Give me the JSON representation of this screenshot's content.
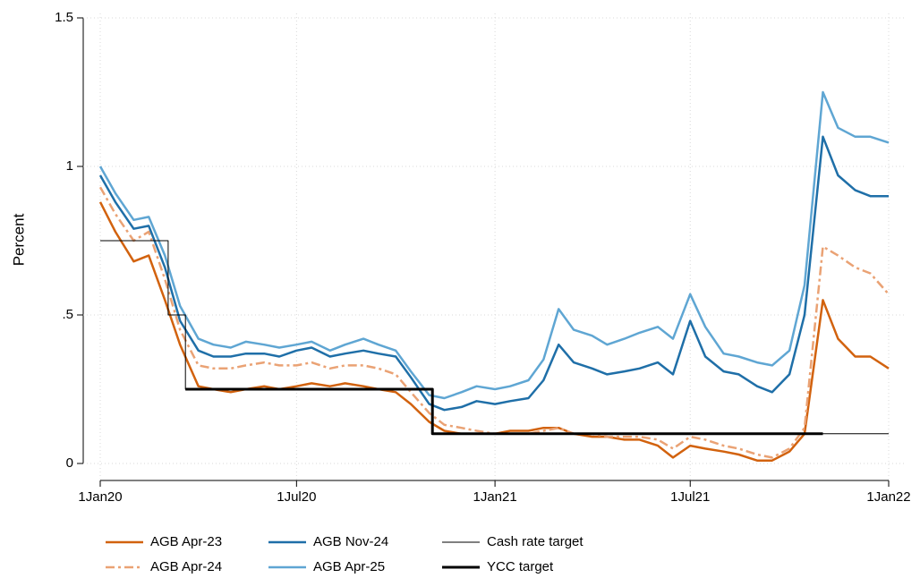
{
  "chart_data": {
    "type": "line",
    "y_label": "Percent",
    "xlim": [
      "2020-01-01",
      "2022-01-01"
    ],
    "xticks": [
      {
        "value": "2020-01-01",
        "label": "1Jan20"
      },
      {
        "value": "2020-07-01",
        "label": "1Jul20"
      },
      {
        "value": "2021-01-01",
        "label": "1Jan21"
      },
      {
        "value": "2021-07-01",
        "label": "1Jul21"
      },
      {
        "value": "2022-01-01",
        "label": "1Jan22"
      }
    ],
    "ylim": [
      0,
      1.5
    ],
    "yticks": [
      0,
      {
        "value": 0.5,
        "label": ".5"
      },
      1,
      1.5
    ],
    "grid": true,
    "legend": "bottom",
    "x": [
      "2020-01-01",
      "2020-01-15",
      "2020-02-01",
      "2020-02-15",
      "2020-03-01",
      "2020-03-15",
      "2020-04-01",
      "2020-04-15",
      "2020-05-01",
      "2020-05-15",
      "2020-06-01",
      "2020-06-15",
      "2020-07-01",
      "2020-07-15",
      "2020-08-01",
      "2020-08-15",
      "2020-09-01",
      "2020-09-15",
      "2020-10-01",
      "2020-10-15",
      "2020-11-01",
      "2020-11-15",
      "2020-12-01",
      "2020-12-15",
      "2021-01-01",
      "2021-01-15",
      "2021-02-01",
      "2021-02-15",
      "2021-03-01",
      "2021-03-15",
      "2021-04-01",
      "2021-04-15",
      "2021-05-01",
      "2021-05-15",
      "2021-06-01",
      "2021-06-15",
      "2021-07-01",
      "2021-07-15",
      "2021-08-01",
      "2021-08-15",
      "2021-09-01",
      "2021-09-15",
      "2021-10-01",
      "2021-10-15",
      "2021-11-01",
      "2021-11-15",
      "2021-12-01",
      "2021-12-15",
      "2022-01-01"
    ],
    "series": [
      {
        "name": "AGB Apr-23",
        "color": "#d2620e",
        "line_width": 2.5,
        "values": [
          0.88,
          0.78,
          0.68,
          0.7,
          0.55,
          0.4,
          0.26,
          0.25,
          0.24,
          0.25,
          0.26,
          0.25,
          0.26,
          0.27,
          0.26,
          0.27,
          0.26,
          0.25,
          0.24,
          0.2,
          0.14,
          0.11,
          0.1,
          0.1,
          0.1,
          0.11,
          0.11,
          0.12,
          0.12,
          0.1,
          0.09,
          0.09,
          0.08,
          0.08,
          0.06,
          0.02,
          0.06,
          0.05,
          0.04,
          0.03,
          0.01,
          0.01,
          0.04,
          0.1,
          0.55,
          0.42,
          0.36,
          0.36,
          0.32
        ]
      },
      {
        "name": "AGB Apr-24",
        "color": "#eaa274",
        "line_width": 2.5,
        "dash": true,
        "values": [
          0.93,
          0.84,
          0.75,
          0.78,
          0.62,
          0.45,
          0.33,
          0.32,
          0.32,
          0.33,
          0.34,
          0.33,
          0.33,
          0.34,
          0.32,
          0.33,
          0.33,
          0.32,
          0.3,
          0.24,
          0.17,
          0.13,
          0.12,
          0.11,
          0.1,
          0.1,
          0.1,
          0.11,
          0.12,
          0.1,
          0.1,
          0.09,
          0.09,
          0.09,
          0.08,
          0.05,
          0.09,
          0.08,
          0.06,
          0.05,
          0.03,
          0.02,
          0.05,
          0.12,
          0.73,
          0.7,
          0.66,
          0.64,
          0.57
        ]
      },
      {
        "name": "AGB Nov-24",
        "color": "#1f6fa8",
        "line_width": 2.5,
        "values": [
          0.97,
          0.88,
          0.79,
          0.8,
          0.66,
          0.48,
          0.38,
          0.36,
          0.36,
          0.37,
          0.37,
          0.36,
          0.38,
          0.39,
          0.36,
          0.37,
          0.38,
          0.37,
          0.36,
          0.29,
          0.2,
          0.18,
          0.19,
          0.21,
          0.2,
          0.21,
          0.22,
          0.28,
          0.4,
          0.34,
          0.32,
          0.3,
          0.31,
          0.32,
          0.34,
          0.3,
          0.48,
          0.36,
          0.31,
          0.3,
          0.26,
          0.24,
          0.3,
          0.5,
          1.1,
          0.97,
          0.92,
          0.9,
          0.9
        ]
      },
      {
        "name": "AGB Apr-25",
        "color": "#5fa6d3",
        "line_width": 2.5,
        "values": [
          1.0,
          0.91,
          0.82,
          0.83,
          0.7,
          0.53,
          0.42,
          0.4,
          0.39,
          0.41,
          0.4,
          0.39,
          0.4,
          0.41,
          0.38,
          0.4,
          0.42,
          0.4,
          0.38,
          0.31,
          0.23,
          0.22,
          0.24,
          0.26,
          0.25,
          0.26,
          0.28,
          0.35,
          0.52,
          0.45,
          0.43,
          0.4,
          0.42,
          0.44,
          0.46,
          0.42,
          0.57,
          0.46,
          0.37,
          0.36,
          0.34,
          0.33,
          0.38,
          0.6,
          1.25,
          1.13,
          1.1,
          1.1,
          1.08
        ]
      },
      {
        "name": "Cash rate target",
        "color": "#000000",
        "line_width": 1,
        "step": "post",
        "x": [
          "2020-01-01",
          "2020-03-04",
          "2020-03-20",
          "2020-11-04",
          "2022-01-01"
        ],
        "values": [
          0.75,
          0.5,
          0.25,
          0.1,
          0.1
        ]
      },
      {
        "name": "YCC target",
        "color": "#000000",
        "line_width": 3,
        "step": "post",
        "x": [
          "2020-03-20",
          "2020-11-04",
          "2021-11-01"
        ],
        "values": [
          0.25,
          0.1,
          0.1
        ]
      }
    ]
  }
}
